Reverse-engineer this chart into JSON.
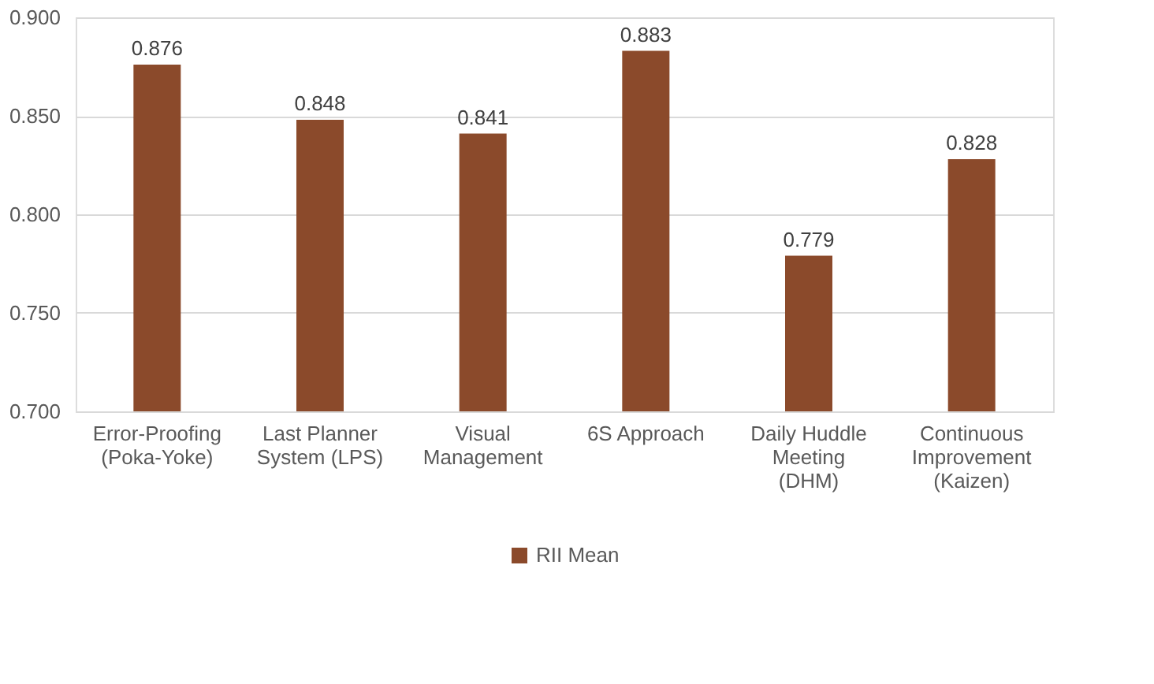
{
  "chart_data": {
    "type": "bar",
    "categories": [
      "Error-Proofing (Poka-Yoke)",
      "Last Planner System (LPS)",
      "Visual Management",
      "6S Approach",
      "Daily Huddle Meeting (DHM)",
      "Continuous Improvement (Kaizen)"
    ],
    "series": [
      {
        "name": "RII Mean",
        "color": "#8b4a2b",
        "values": [
          0.876,
          0.848,
          0.841,
          0.883,
          0.779,
          0.828
        ]
      }
    ],
    "value_labels": [
      "0.876",
      "0.848",
      "0.841",
      "0.883",
      "0.779",
      "0.828"
    ],
    "ylim": [
      0.7,
      0.9
    ],
    "yticks": [
      {
        "value": 0.7,
        "label": "0.700"
      },
      {
        "value": 0.75,
        "label": "0.750"
      },
      {
        "value": 0.8,
        "label": "0.800"
      },
      {
        "value": 0.85,
        "label": "0.850"
      },
      {
        "value": 0.9,
        "label": "0.900"
      }
    ],
    "grid": "y",
    "legend": "bottom"
  }
}
